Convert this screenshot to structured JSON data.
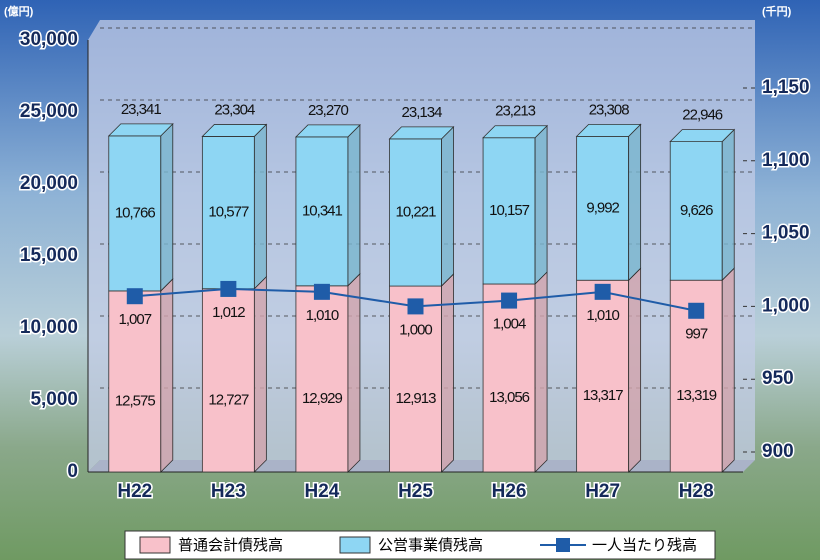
{
  "chart_data": {
    "type": "bar",
    "stacked": true,
    "y_unit": "(億円)",
    "y2_unit": "(千円)",
    "categories": [
      "H22",
      "H23",
      "H24",
      "H25",
      "H26",
      "H27",
      "H28"
    ],
    "series": [
      {
        "name": "普通会計債残高",
        "color": "#f8c1ca",
        "values": [
          12575,
          12727,
          12929,
          12913,
          13056,
          13317,
          13319
        ],
        "value_labels": [
          "12,575",
          "12,727",
          "12,929",
          "12,913",
          "13,056",
          "13,317",
          "13,319"
        ]
      },
      {
        "name": "公営事業債残高",
        "color": "#8ed6f3",
        "values": [
          10766,
          10577,
          10341,
          10221,
          10157,
          9992,
          9626
        ],
        "value_labels": [
          "10,766",
          "10,577",
          "10,341",
          "10,221",
          "10,157",
          "9,992",
          "9,626"
        ]
      },
      {
        "name": "一人当たり残高",
        "type": "line",
        "axis": "y2",
        "color": "#1f5ca8",
        "values": [
          1007,
          1012,
          1010,
          1000,
          1004,
          1010,
          997
        ],
        "value_labels": [
          "1,007",
          "1,012",
          "1,010",
          "1,000",
          "1,004",
          "1,010",
          "997"
        ]
      }
    ],
    "totals": [
      23341,
      23304,
      23270,
      23134,
      23213,
      23308,
      22946
    ],
    "total_labels": [
      "23,341",
      "23,304",
      "23,270",
      "23,134",
      "23,213",
      "23,308",
      "22,946"
    ],
    "ylim": [
      0,
      30000
    ],
    "yticks": [
      0,
      {
        "value": 5000,
        "label": "5,000"
      },
      {
        "value": 10000,
        "label": "10,000"
      },
      {
        "value": 15000,
        "label": "15,000"
      },
      {
        "value": 20000,
        "label": "20,000"
      },
      {
        "value": 25000,
        "label": "25,000"
      },
      {
        "value": 30000,
        "label": "30,000"
      }
    ],
    "y2lim": [
      900,
      1150
    ],
    "y2ticks": [
      900,
      950,
      {
        "value": 1000,
        "label": "1,000"
      },
      {
        "value": 1050,
        "label": "1,050"
      },
      {
        "value": 1100,
        "label": "1,100"
      },
      {
        "value": 1150,
        "label": "1,150"
      }
    ],
    "grid": true,
    "legend": "bottom"
  }
}
